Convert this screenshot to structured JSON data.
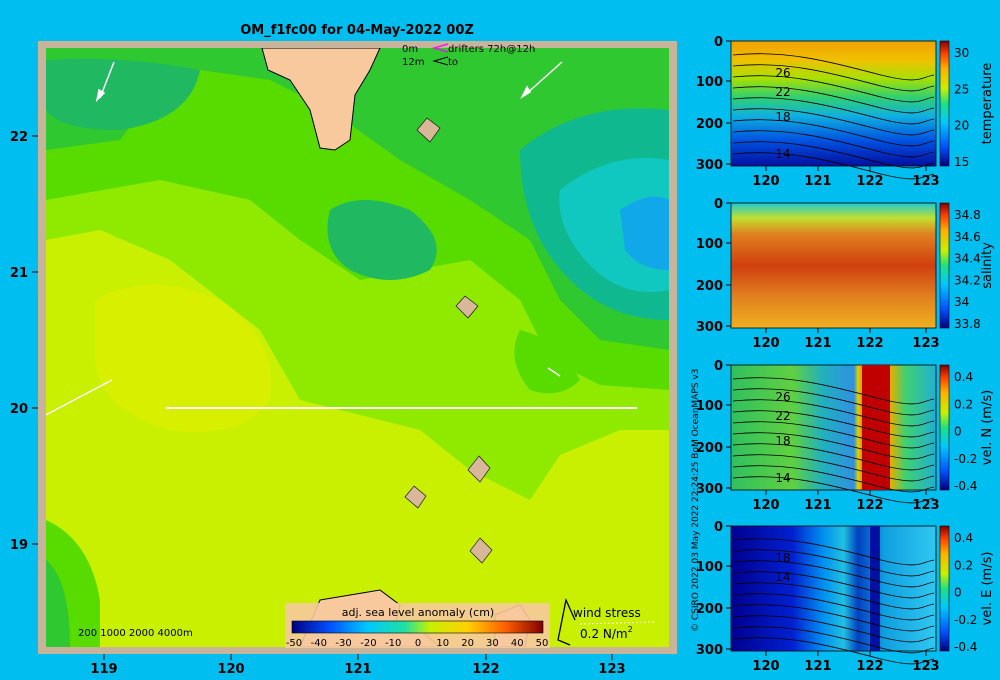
{
  "title": "OM_f1fc00 for 04-May-2022 00Z",
  "colors": {
    "background": "#00bff0",
    "map_frame": "#c8b49a",
    "land": "#f7c99c"
  },
  "map": {
    "x_ticks": [
      "119",
      "120",
      "121",
      "122",
      "123"
    ],
    "y_ticks": [
      "22",
      "21",
      "20",
      "19"
    ],
    "drifter_legend": {
      "depth_top": "0m",
      "depth_bottom": "12m",
      "label": "drifters 72h@12h",
      "to_label": "to"
    },
    "bathymetry_contours_label": "200  1000  2000  4000m",
    "colorbar": {
      "title": "adj. sea level anomaly (cm)",
      "ticks": [
        "-50",
        "-40",
        "-30",
        "-20",
        "-10",
        "0",
        "10",
        "20",
        "30",
        "40",
        "50"
      ]
    },
    "wind_stress": {
      "label": "wind stress",
      "scale": "0.2 N/m",
      "scale_sup": "2"
    }
  },
  "panels": [
    {
      "id": "temperature",
      "label": "temperature",
      "cb_ticks": [
        "30",
        "25",
        "20",
        "15"
      ],
      "contours": [
        "26",
        "22",
        "18",
        "14"
      ]
    },
    {
      "id": "salinity",
      "label": "salinity",
      "cb_ticks": [
        "34.8",
        "34.6",
        "34.4",
        "34.2",
        "34",
        "33.8"
      ],
      "contours": []
    },
    {
      "id": "vel_n",
      "label": "vel. N (m/s)",
      "cb_ticks": [
        "0.4",
        "0.2",
        "0",
        "-0.2",
        "-0.4"
      ],
      "contours": [
        "26",
        "22",
        "18",
        "14"
      ]
    },
    {
      "id": "vel_e",
      "label": "vel. E (m/s)",
      "cb_ticks": [
        "0.4",
        "0.2",
        "0",
        "-0.2",
        "-0.4"
      ],
      "contours": [
        "18",
        "14"
      ]
    }
  ],
  "section_x_ticks": [
    "120",
    "121",
    "122",
    "123"
  ],
  "section_y_ticks": [
    "0",
    "100",
    "200",
    "300"
  ],
  "credit": "© CSIRO 2022   03 May 2022 22:24:25 BoM OceanMAPS v3"
}
